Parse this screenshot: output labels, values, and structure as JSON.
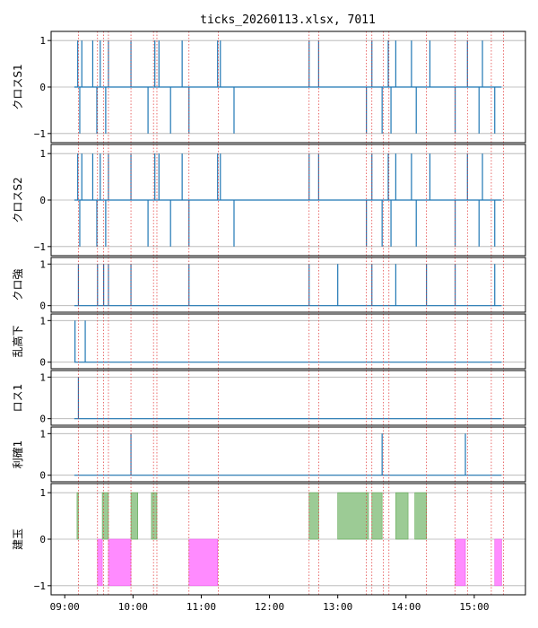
{
  "chart_data": {
    "type": "line",
    "title": "ticks_20260113.xlsx, 7011",
    "x_ticks": [
      "09:00",
      "10:00",
      "11:00",
      "12:00",
      "13:00",
      "14:00",
      "15:00"
    ],
    "x_tick_hours": [
      9,
      10,
      11,
      12,
      13,
      14,
      15
    ],
    "xlim": [
      8.8,
      15.75
    ],
    "line_start": 9.14,
    "line_end": 15.4,
    "vlines": [
      9.2,
      9.48,
      9.57,
      9.64,
      9.97,
      10.3,
      10.35,
      10.82,
      11.25,
      12.58,
      12.72,
      13.42,
      13.5,
      13.67,
      13.75,
      14.3,
      14.72,
      14.9,
      15.25,
      15.43
    ],
    "panels": [
      {
        "ylabel": "クロスS1",
        "kind": "signal",
        "yticks": [
          1,
          0,
          -1
        ],
        "ylim": [
          -1.1,
          1.1
        ],
        "events": [
          {
            "t": 9.19,
            "v": 1
          },
          {
            "t": 9.22,
            "v": -1
          },
          {
            "t": 9.25,
            "v": 1
          },
          {
            "t": 9.41,
            "v": 1
          },
          {
            "t": 9.47,
            "v": -1
          },
          {
            "t": 9.52,
            "v": 1
          },
          {
            "t": 9.6,
            "v": -1
          },
          {
            "t": 9.64,
            "v": 1
          },
          {
            "t": 9.97,
            "v": 1
          },
          {
            "t": 10.22,
            "v": -1
          },
          {
            "t": 10.32,
            "v": 1
          },
          {
            "t": 10.38,
            "v": 1
          },
          {
            "t": 10.55,
            "v": -1
          },
          {
            "t": 10.72,
            "v": 1
          },
          {
            "t": 10.82,
            "v": -1
          },
          {
            "t": 11.24,
            "v": 1
          },
          {
            "t": 11.28,
            "v": 1
          },
          {
            "t": 11.48,
            "v": -1
          },
          {
            "t": 12.58,
            "v": 1
          },
          {
            "t": 12.72,
            "v": 1
          },
          {
            "t": 13.42,
            "v": -1
          },
          {
            "t": 13.5,
            "v": 1
          },
          {
            "t": 13.65,
            "v": -1
          },
          {
            "t": 13.74,
            "v": 1
          },
          {
            "t": 13.78,
            "v": -1
          },
          {
            "t": 13.85,
            "v": 1
          },
          {
            "t": 14.08,
            "v": 1
          },
          {
            "t": 14.15,
            "v": -1
          },
          {
            "t": 14.35,
            "v": 1
          },
          {
            "t": 14.72,
            "v": -1
          },
          {
            "t": 14.9,
            "v": 1
          },
          {
            "t": 15.07,
            "v": -1
          },
          {
            "t": 15.12,
            "v": 1
          },
          {
            "t": 15.3,
            "v": -1
          }
        ]
      },
      {
        "ylabel": "クロスS2",
        "kind": "signal",
        "yticks": [
          1,
          0,
          -1
        ],
        "ylim": [
          -1.1,
          1.1
        ],
        "events": [
          {
            "t": 9.19,
            "v": 1
          },
          {
            "t": 9.22,
            "v": -1
          },
          {
            "t": 9.25,
            "v": 1
          },
          {
            "t": 9.41,
            "v": 1
          },
          {
            "t": 9.47,
            "v": -1
          },
          {
            "t": 9.52,
            "v": 1
          },
          {
            "t": 9.6,
            "v": -1
          },
          {
            "t": 9.64,
            "v": 1
          },
          {
            "t": 9.97,
            "v": 1
          },
          {
            "t": 10.22,
            "v": -1
          },
          {
            "t": 10.32,
            "v": 1
          },
          {
            "t": 10.38,
            "v": 1
          },
          {
            "t": 10.55,
            "v": -1
          },
          {
            "t": 10.72,
            "v": 1
          },
          {
            "t": 10.82,
            "v": -1
          },
          {
            "t": 11.24,
            "v": 1
          },
          {
            "t": 11.28,
            "v": 1
          },
          {
            "t": 11.48,
            "v": -1
          },
          {
            "t": 12.58,
            "v": 1
          },
          {
            "t": 12.72,
            "v": 1
          },
          {
            "t": 13.42,
            "v": -1
          },
          {
            "t": 13.5,
            "v": 1
          },
          {
            "t": 13.65,
            "v": -1
          },
          {
            "t": 13.74,
            "v": 1
          },
          {
            "t": 13.78,
            "v": -1
          },
          {
            "t": 13.85,
            "v": 1
          },
          {
            "t": 14.08,
            "v": 1
          },
          {
            "t": 14.15,
            "v": -1
          },
          {
            "t": 14.35,
            "v": 1
          },
          {
            "t": 14.72,
            "v": -1
          },
          {
            "t": 14.9,
            "v": 1
          },
          {
            "t": 15.07,
            "v": -1
          },
          {
            "t": 15.12,
            "v": 1
          },
          {
            "t": 15.3,
            "v": -1
          }
        ]
      },
      {
        "ylabel": "クロ強",
        "kind": "signal",
        "yticks": [
          1,
          0
        ],
        "ylim": [
          -0.05,
          1.05
        ],
        "events": [
          {
            "t": 9.2,
            "v": 1
          },
          {
            "t": 9.48,
            "v": 1
          },
          {
            "t": 9.57,
            "v": 1
          },
          {
            "t": 9.64,
            "v": 1
          },
          {
            "t": 9.97,
            "v": 1
          },
          {
            "t": 10.82,
            "v": 1
          },
          {
            "t": 12.58,
            "v": 1
          },
          {
            "t": 13.0,
            "v": 1
          },
          {
            "t": 13.5,
            "v": 1
          },
          {
            "t": 13.85,
            "v": 1
          },
          {
            "t": 14.3,
            "v": 1
          },
          {
            "t": 14.72,
            "v": 1
          },
          {
            "t": 15.3,
            "v": 1
          }
        ]
      },
      {
        "ylabel": "乱高下",
        "kind": "signal",
        "yticks": [
          1,
          0
        ],
        "ylim": [
          -0.05,
          1.05
        ],
        "events": [
          {
            "t": 9.15,
            "v": 1
          },
          {
            "t": 9.3,
            "v": 1
          }
        ]
      },
      {
        "ylabel": "ロス1",
        "kind": "signal",
        "yticks": [
          1,
          0
        ],
        "ylim": [
          -0.05,
          1.05
        ],
        "events": [
          {
            "t": 9.2,
            "v": 1
          }
        ]
      },
      {
        "ylabel": "利確1",
        "kind": "signal",
        "yticks": [
          1,
          0
        ],
        "ylim": [
          -0.05,
          1.05
        ],
        "events": [
          {
            "t": 9.97,
            "v": 1
          },
          {
            "t": 13.65,
            "v": 1
          },
          {
            "t": 14.87,
            "v": 1
          }
        ]
      },
      {
        "ylabel": "建玉",
        "kind": "position",
        "yticks": [
          1,
          0,
          -1
        ],
        "ylim": [
          -1.1,
          1.1
        ],
        "long_color": "#9ccb95",
        "short_color": "#ff8bff",
        "blocks": [
          {
            "start": 9.18,
            "end": 9.2,
            "v": 1
          },
          {
            "start": 9.55,
            "end": 9.64,
            "v": 1
          },
          {
            "start": 9.97,
            "end": 10.07,
            "v": 1
          },
          {
            "start": 10.27,
            "end": 10.35,
            "v": 1
          },
          {
            "start": 12.58,
            "end": 12.72,
            "v": 1
          },
          {
            "start": 13.0,
            "end": 13.45,
            "v": 1
          },
          {
            "start": 13.5,
            "end": 13.65,
            "v": 1
          },
          {
            "start": 13.85,
            "end": 14.03,
            "v": 1
          },
          {
            "start": 14.13,
            "end": 14.3,
            "v": 1
          },
          {
            "start": 9.48,
            "end": 9.55,
            "v": -1
          },
          {
            "start": 9.64,
            "end": 9.97,
            "v": -1
          },
          {
            "start": 10.82,
            "end": 11.24,
            "v": -1
          },
          {
            "start": 14.72,
            "end": 14.87,
            "v": -1
          },
          {
            "start": 15.3,
            "end": 15.4,
            "v": -1
          }
        ]
      }
    ]
  }
}
